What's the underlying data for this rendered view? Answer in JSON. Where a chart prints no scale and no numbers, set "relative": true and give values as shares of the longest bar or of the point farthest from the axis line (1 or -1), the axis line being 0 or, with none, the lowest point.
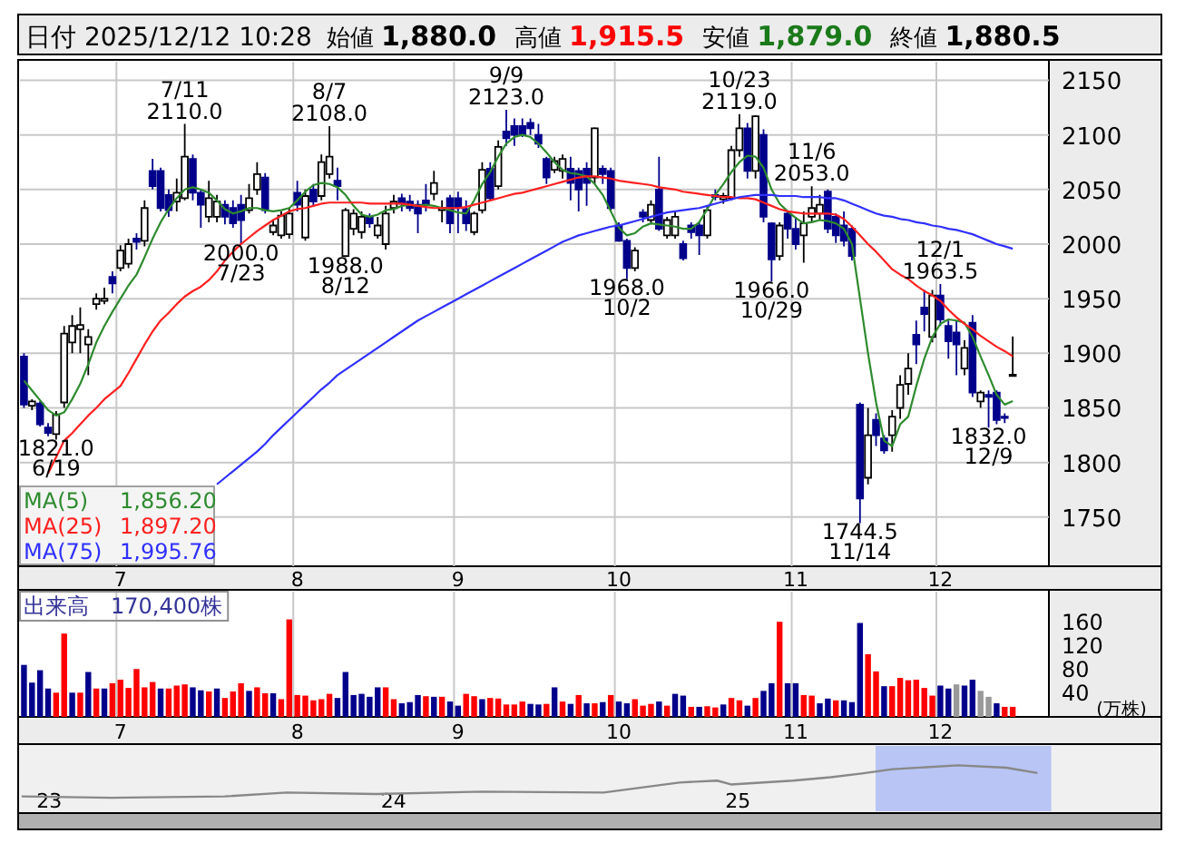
{
  "chart_data": [
    {
      "type": "candlestick",
      "title": "日付 2025/12/12 10:28",
      "annotations": [
        "始値",
        "1,880.0",
        "高値",
        "1,915.5",
        "安値",
        "1,879.0",
        "終値",
        "1,880.5",
        "1,856.20",
        "1,897.20",
        "1,995.76",
        {
          "text": "6/19",
          "y": 1821
        },
        {
          "text": "7/11",
          "y": 2110
        },
        {
          "text": "7/23",
          "y": 2000
        },
        {
          "text": "8/7",
          "y": 2108
        },
        {
          "text": "8/12",
          "y": 1988
        },
        {
          "text": "9/9",
          "y": 2123
        },
        {
          "text": "10/2",
          "y": 1968
        },
        {
          "text": "10/23",
          "y": 2119
        },
        {
          "text": "10/29",
          "y": 1966
        },
        {
          "text": "11/6",
          "y": 2053
        },
        {
          "text": "11/14",
          "y": 1744.5
        },
        {
          "text": "12/1",
          "y": 1963.5
        },
        {
          "text": "12/9",
          "y": 1832
        }
      ],
      "value_labels": [
        null,
        null,
        null,
        null,
        "1821.0",
        null,
        null,
        null,
        null,
        null,
        null,
        null,
        null,
        null,
        null,
        null,
        null,
        null,
        null,
        null,
        "2110.0",
        null,
        null,
        null,
        null,
        null,
        null,
        "2000.0",
        null,
        null,
        null,
        null,
        null,
        null,
        null,
        null,
        null,
        null,
        "2108.0",
        null,
        "1988.0",
        null,
        null,
        null,
        null,
        null,
        null,
        null,
        null,
        null,
        null,
        null,
        null,
        null,
        null,
        null,
        null,
        null,
        null,
        null,
        "2123.0",
        null,
        null,
        null,
        null,
        null,
        null,
        null,
        null,
        null,
        null,
        null,
        null,
        null,
        null,
        "1968.0",
        null,
        null,
        null,
        null,
        null,
        null,
        null,
        null,
        null,
        null,
        null,
        null,
        null,
        "2119.0",
        null,
        null,
        null,
        "1966.0",
        null,
        null,
        null,
        null,
        "2053.0",
        null,
        null,
        null,
        null,
        null,
        "1744.5",
        null,
        null,
        null,
        null,
        null,
        null,
        null,
        null,
        null,
        "1963.5",
        null,
        null,
        null,
        null,
        null,
        "1832.0",
        null,
        null,
        null,
        null,
        null,
        null,
        null
      ],
      "categories": [
        null,
        null,
        null,
        null,
        null,
        null,
        null,
        null,
        null,
        null,
        null,
        null,
        "7",
        null,
        null,
        null,
        null,
        null,
        null,
        null,
        null,
        null,
        null,
        null,
        null,
        null,
        null,
        null,
        null,
        null,
        null,
        null,
        null,
        null,
        "8",
        null,
        null,
        null,
        null,
        null,
        null,
        null,
        null,
        null,
        null,
        null,
        null,
        null,
        null,
        null,
        null,
        null,
        null,
        null,
        "9",
        null,
        null,
        null,
        null,
        null,
        null,
        null,
        null,
        null,
        null,
        null,
        null,
        null,
        null,
        null,
        null,
        null,
        null,
        null,
        "10",
        null,
        null,
        null,
        null,
        null,
        null,
        null,
        null,
        null,
        null,
        null,
        null,
        null,
        null,
        null,
        null,
        null,
        null,
        null,
        null,
        null,
        "11",
        null,
        null,
        null,
        null,
        null,
        null,
        null,
        null,
        null,
        null,
        null,
        null,
        null,
        null,
        null,
        null,
        null,
        "12",
        null,
        null,
        null,
        null,
        null,
        null,
        null,
        null,
        null,
        null,
        null,
        null,
        null
      ],
      "ohlc": [
        [
          1897,
          1900,
          1850,
          1853
        ],
        [
          1852,
          1858,
          1848,
          1856
        ],
        [
          1854,
          1856,
          1833,
          1835
        ],
        [
          1832,
          1836,
          1824,
          1827
        ],
        [
          1826,
          1847,
          1821,
          1844
        ],
        [
          1855,
          1925,
          1850,
          1918
        ],
        [
          1910,
          1935,
          1900,
          1925
        ],
        [
          1922,
          1942,
          1900,
          1926
        ],
        [
          1908,
          1922,
          1880,
          1915
        ],
        [
          1945,
          1955,
          1940,
          1950
        ],
        [
          1948,
          1960,
          1945,
          1950
        ],
        [
          1970,
          1975,
          1955,
          1964
        ],
        [
          1978,
          1999,
          1975,
          1994
        ],
        [
          1982,
          2005,
          1978,
          2000
        ],
        [
          2005,
          2010,
          1995,
          2002
        ],
        [
          2003,
          2040,
          1998,
          2033
        ],
        [
          2067,
          2078,
          2050,
          2053
        ],
        [
          2067,
          2070,
          2030,
          2033
        ],
        [
          2045,
          2050,
          2025,
          2031
        ],
        [
          2039,
          2060,
          2030,
          2047
        ],
        [
          2042,
          2110,
          2040,
          2080
        ],
        [
          2078,
          2082,
          2040,
          2047
        ],
        [
          2047,
          2050,
          2015,
          2036
        ],
        [
          2025,
          2058,
          2020,
          2042
        ],
        [
          2025,
          2045,
          2020,
          2039
        ],
        [
          2036,
          2040,
          2018,
          2025
        ],
        [
          2033,
          2040,
          2015,
          2019
        ],
        [
          2036,
          2045,
          2000,
          2022
        ],
        [
          2031,
          2055,
          2028,
          2042
        ],
        [
          2050,
          2075,
          2045,
          2064
        ],
        [
          2061,
          2065,
          2028,
          2031
        ],
        [
          2011,
          2022,
          2008,
          2017
        ],
        [
          2008,
          2030,
          2005,
          2026
        ],
        [
          2009,
          2033,
          2005,
          2028
        ],
        [
          2047,
          2058,
          2030,
          2036
        ],
        [
          2006,
          2050,
          2003,
          2044
        ],
        [
          2050,
          2055,
          2035,
          2039
        ],
        [
          2044,
          2082,
          2040,
          2075
        ],
        [
          2064,
          2108,
          2060,
          2080
        ],
        [
          2058,
          2070,
          2040,
          2053
        ],
        [
          1989,
          2033,
          1988,
          2031
        ],
        [
          2014,
          2032,
          2008,
          2028
        ],
        [
          2011,
          2030,
          2005,
          2025
        ],
        [
          2025,
          2028,
          2015,
          2019
        ],
        [
          2008,
          2025,
          2005,
          2017
        ],
        [
          2000,
          2035,
          1995,
          2028
        ],
        [
          2033,
          2045,
          2028,
          2039
        ],
        [
          2042,
          2046,
          2030,
          2037
        ],
        [
          2039,
          2045,
          2030,
          2033
        ],
        [
          2036,
          2040,
          2010,
          2028
        ],
        [
          2040,
          2055,
          2030,
          2036
        ],
        [
          2046,
          2067,
          2040,
          2056
        ],
        [
          2031,
          2040,
          2020,
          2033
        ],
        [
          2042,
          2045,
          2010,
          2019
        ],
        [
          2042,
          2048,
          2010,
          2033
        ],
        [
          2032,
          2040,
          2012,
          2019
        ],
        [
          2011,
          2030,
          2008,
          2028
        ],
        [
          2031,
          2075,
          2028,
          2068
        ],
        [
          2069,
          2075,
          2040,
          2042
        ],
        [
          2053,
          2095,
          2050,
          2089
        ],
        [
          2103,
          2123,
          2090,
          2097
        ],
        [
          2108,
          2115,
          2090,
          2100
        ],
        [
          2108,
          2115,
          2098,
          2100
        ],
        [
          2111,
          2115,
          2100,
          2106
        ],
        [
          2100,
          2110,
          2088,
          2092
        ],
        [
          2078,
          2080,
          2055,
          2061
        ],
        [
          2068,
          2080,
          2065,
          2076
        ],
        [
          2067,
          2082,
          2060,
          2078
        ],
        [
          2069,
          2080,
          2040,
          2056
        ],
        [
          2067,
          2070,
          2030,
          2050
        ],
        [
          2069,
          2075,
          2035,
          2056
        ],
        [
          2061,
          2107,
          2055,
          2106
        ],
        [
          2069,
          2072,
          2055,
          2064
        ],
        [
          2067,
          2070,
          2030,
          2033
        ],
        [
          2017,
          2020,
          2002,
          2003
        ],
        [
          2003,
          2005,
          1968,
          1978
        ],
        [
          1978,
          1997,
          1975,
          1994
        ],
        [
          2029,
          2032,
          2020,
          2025
        ],
        [
          2022,
          2040,
          2018,
          2036
        ],
        [
          2050,
          2080,
          2012,
          2014
        ],
        [
          2008,
          2025,
          2005,
          2022
        ],
        [
          2008,
          2030,
          2005,
          2025
        ],
        [
          2000,
          2003,
          1985,
          1987
        ],
        [
          2017,
          2020,
          2005,
          2011
        ],
        [
          2017,
          2020,
          1990,
          2008
        ],
        [
          2008,
          2035,
          2005,
          2031
        ],
        [
          2045,
          2050,
          2040,
          2043
        ],
        [
          2041,
          2047,
          2037,
          2044
        ],
        [
          2042,
          2090,
          2040,
          2086
        ],
        [
          2086,
          2119,
          2080,
          2106
        ],
        [
          2106,
          2111,
          2060,
          2067
        ],
        [
          2067,
          2118,
          2060,
          2117
        ],
        [
          2100,
          2105,
          2020,
          2025
        ],
        [
          2019,
          2020,
          1966,
          1986
        ],
        [
          1989,
          2020,
          1985,
          2017
        ],
        [
          2028,
          2030,
          2005,
          2014
        ],
        [
          2014,
          2025,
          1995,
          2000
        ],
        [
          2008,
          2030,
          1983,
          2019
        ],
        [
          2025,
          2053,
          2020,
          2033
        ],
        [
          2028,
          2045,
          2022,
          2036
        ],
        [
          2048,
          2050,
          2010,
          2014
        ],
        [
          2025,
          2028,
          2001,
          2008
        ],
        [
          2017,
          2030,
          1998,
          2003
        ],
        [
          2014,
          2017,
          1985,
          1989
        ],
        [
          1853,
          1855,
          1744.5,
          1767
        ],
        [
          1786,
          1850,
          1780,
          1825
        ],
        [
          1839,
          1845,
          1815,
          1825
        ],
        [
          1822,
          1825,
          1808,
          1811
        ],
        [
          1825,
          1848,
          1810,
          1842
        ],
        [
          1850,
          1880,
          1840,
          1871
        ],
        [
          1872,
          1900,
          1862,
          1886
        ],
        [
          1917,
          1930,
          1890,
          1908
        ],
        [
          1942,
          1958,
          1920,
          1936
        ],
        [
          1915,
          1958,
          1910,
          1953
        ],
        [
          1953,
          1963.5,
          1925,
          1931
        ],
        [
          1925,
          1930,
          1895,
          1911
        ],
        [
          1919,
          1930,
          1880,
          1908
        ],
        [
          1886,
          1912,
          1880,
          1905
        ],
        [
          1928,
          1935,
          1860,
          1864
        ],
        [
          1856,
          1866,
          1850,
          1864
        ],
        [
          1862,
          1866,
          1832,
          1860
        ],
        [
          1864,
          1866,
          1835,
          1839
        ],
        [
          1842,
          1845,
          1836,
          1841
        ],
        [
          1880,
          1915.5,
          1879,
          1880.5
        ],
        null,
        null,
        null,
        null
      ],
      "series": [
        {
          "type": "line",
          "name": "MA(5)",
          "color": "#2e8b2e",
          "values": [
            1875,
            1866,
            1857,
            1848,
            1843,
            1846,
            1858,
            1872,
            1890,
            1910,
            1925,
            1938,
            1950,
            1962,
            1972,
            1988,
            2005,
            2020,
            2032,
            2042,
            2050,
            2052,
            2050,
            2047,
            2040,
            2032,
            2028,
            2030,
            2033,
            2033,
            2031,
            2030,
            2031,
            2033,
            2040,
            2048,
            2054,
            2056,
            2055,
            2052,
            2045,
            2035,
            2027,
            2025,
            2027,
            2031,
            2032,
            2035,
            2036,
            2035,
            2036,
            2035,
            2033,
            2031,
            2029,
            2028,
            2040,
            2055,
            2066,
            2080,
            2092,
            2098,
            2100,
            2098,
            2092,
            2084,
            2075,
            2068,
            2065,
            2064,
            2062,
            2055,
            2045,
            2030,
            2015,
            2008,
            2010,
            2016,
            2019,
            2018,
            2017,
            2016,
            2014,
            2014,
            2020,
            2032,
            2045,
            2055,
            2066,
            2075,
            2081,
            2080,
            2070,
            2050,
            2037,
            2030,
            2024,
            2019,
            2020,
            2022,
            2021,
            2019,
            2014,
            2000,
            1950,
            1900,
            1855,
            1820,
            1815,
            1835,
            1842,
            1870,
            1895,
            1915,
            1927,
            1931,
            1930,
            1928,
            1915,
            1897,
            1880,
            1862,
            1853,
            1856.2,
            null,
            null,
            null,
            null
          ]
        },
        {
          "type": "line",
          "name": "MA(25)",
          "color": "#ff2020",
          "values": [
            null,
            null,
            null,
            1790,
            1805,
            1820,
            1827,
            1835,
            1843,
            1850,
            1858,
            1864,
            1870,
            1882,
            1895,
            1908,
            1920,
            1930,
            1937,
            1945,
            1952,
            1957,
            1961,
            1967,
            1975,
            1985,
            1993,
            2000,
            2006,
            2012,
            2017,
            2022,
            2026,
            2030,
            2032,
            2033,
            2035,
            2037,
            2038,
            2038,
            2038,
            2038,
            2038,
            2037,
            2037,
            2037,
            2037,
            2037,
            2036,
            2035,
            2034,
            2033,
            2033,
            2033,
            2033,
            2034,
            2036,
            2038,
            2040,
            2042,
            2044,
            2046,
            2047,
            2049,
            2051,
            2053,
            2055,
            2057,
            2059,
            2061,
            2062,
            2062,
            2061,
            2060,
            2058,
            2057,
            2056,
            2055,
            2054,
            2052,
            2051,
            2050,
            2048,
            2047,
            2046,
            2045,
            2044,
            2043,
            2043,
            2042,
            2042,
            2041,
            2038,
            2035,
            2032,
            2030,
            2029,
            2028,
            2028,
            2028,
            2028,
            2027,
            2023,
            2016,
            2008,
            2000,
            1993,
            1985,
            1977,
            1972,
            1968,
            1962,
            1957,
            1953,
            1948,
            1940,
            1933,
            1927,
            1922,
            1916,
            1911,
            1906,
            1902,
            1897.2,
            null,
            null,
            null,
            null
          ]
        },
        {
          "type": "line",
          "name": "MA(75)",
          "color": "#3030ff",
          "values": [
            null,
            null,
            null,
            null,
            null,
            null,
            null,
            null,
            null,
            null,
            null,
            null,
            null,
            null,
            null,
            null,
            null,
            null,
            null,
            null,
            null,
            null,
            null,
            null,
            1780,
            1786,
            1792,
            1798,
            1804,
            1810,
            1817,
            1825,
            1832,
            1839,
            1846,
            1853,
            1860,
            1867,
            1873,
            1880,
            1885,
            1890,
            1895,
            1900,
            1905,
            1910,
            1915,
            1920,
            1925,
            1930,
            1934,
            1938,
            1942,
            1946,
            1950,
            1954,
            1958,
            1962,
            1966,
            1970,
            1974,
            1978,
            1982,
            1986,
            1990,
            1994,
            1998,
            2002,
            2005,
            2008,
            2010,
            2012,
            2014,
            2016,
            2017,
            2019,
            2021,
            2023,
            2025,
            2027,
            2029,
            2030,
            2031,
            2032,
            2033,
            2035,
            2037,
            2039,
            2041,
            2043,
            2044,
            2045,
            2045,
            2045,
            2044,
            2044,
            2044,
            2043,
            2043,
            2043,
            2042,
            2042,
            2040,
            2037,
            2034,
            2031,
            2028,
            2026,
            2025,
            2023,
            2022,
            2020,
            2019,
            2017,
            2016,
            2014,
            2013,
            2011,
            2009,
            2006,
            2003,
            2000,
            1998,
            1995.76,
            null,
            null,
            null,
            null
          ]
        }
      ],
      "ylim": [
        1705,
        2167
      ],
      "yticks": [
        1750,
        1800,
        1850,
        1900,
        1950,
        2000,
        2050,
        2100,
        2150
      ],
      "grid": true,
      "legend": "bottom left"
    },
    {
      "type": "bar",
      "title": "出来高　170,400株",
      "ylabel": "(万株)",
      "categories": [
        null,
        null,
        null,
        null,
        null,
        null,
        null,
        null,
        null,
        null,
        null,
        null,
        "7",
        null,
        null,
        null,
        null,
        null,
        null,
        null,
        null,
        null,
        null,
        null,
        null,
        null,
        null,
        null,
        null,
        null,
        null,
        null,
        null,
        null,
        "8",
        null,
        null,
        null,
        null,
        null,
        null,
        null,
        null,
        null,
        null,
        null,
        null,
        null,
        null,
        null,
        null,
        null,
        null,
        null,
        "9",
        null,
        null,
        null,
        null,
        null,
        null,
        null,
        null,
        null,
        null,
        null,
        null,
        null,
        null,
        null,
        null,
        null,
        null,
        null,
        "10",
        null,
        null,
        null,
        null,
        null,
        null,
        null,
        null,
        null,
        null,
        null,
        null,
        null,
        null,
        null,
        null,
        null,
        null,
        null,
        null,
        null,
        "11",
        null,
        null,
        null,
        null,
        null,
        null,
        null,
        null,
        null,
        null,
        null,
        null,
        null,
        null,
        null,
        null,
        null,
        "12",
        null,
        null,
        null,
        null,
        null,
        null,
        null,
        null,
        null,
        null,
        null,
        null,
        null
      ],
      "values": [
        88,
        58,
        79,
        48,
        41,
        141,
        41,
        41,
        76,
        48,
        48,
        57,
        63,
        49,
        81,
        50,
        59,
        48,
        48,
        53,
        55,
        50,
        45,
        43,
        48,
        32,
        43,
        57,
        44,
        50,
        40,
        40,
        30,
        165,
        37,
        36,
        28,
        30,
        39,
        32,
        76,
        37,
        39,
        34,
        50,
        50,
        30,
        23,
        25,
        37,
        35,
        34,
        34,
        26,
        19,
        39,
        35,
        30,
        32,
        31,
        21,
        21,
        26,
        22,
        21,
        22,
        50,
        26,
        22,
        37,
        23,
        23,
        25,
        37,
        26,
        23,
        30,
        19,
        22,
        26,
        19,
        39,
        36,
        17,
        17,
        18,
        16,
        21,
        32,
        28,
        19,
        32,
        44,
        57,
        161,
        57,
        57,
        37,
        36,
        23,
        31,
        28,
        28,
        25,
        159,
        106,
        77,
        52,
        52,
        66,
        62,
        63,
        49,
        36,
        53,
        48,
        55,
        53,
        63,
        44,
        34,
        23,
        17,
        17,
        null,
        null,
        null,
        null
      ],
      "colors": [
        "#00008b",
        "#00008b",
        "#00008b",
        "#00008b",
        "#ff0000",
        "#ff0000",
        "#00008b",
        "#ff0000",
        "#00008b",
        "#ff0000",
        "#00008b",
        "#ff0000",
        "#ff0000",
        "#ff0000",
        "#ff0000",
        "#ff0000",
        "#ff0000",
        "#00008b",
        "#ff0000",
        "#ff0000",
        "#ff0000",
        "#00008b",
        "#00008b",
        "#ff0000",
        "#00008b",
        "#ff0000",
        "#ff0000",
        "#ff0000",
        "#00008b",
        "#ff0000",
        "#ff0000",
        "#00008b",
        "#ff0000",
        "#ff0000",
        "#ff0000",
        "#ff0000",
        "#ff0000",
        "#ff0000",
        "#ff0000",
        "#00008b",
        "#00008b",
        "#00008b",
        "#00008b",
        "#00008b",
        "#00008b",
        "#ff0000",
        "#ff0000",
        "#00008b",
        "#00008b",
        "#00008b",
        "#ff0000",
        "#00008b",
        "#ff0000",
        "#00008b",
        "#00008b",
        "#ff0000",
        "#ff0000",
        "#00008b",
        "#ff0000",
        "#ff0000",
        "#ff0000",
        "#ff0000",
        "#ff0000",
        "#00008b",
        "#00008b",
        "#ff0000",
        "#00008b",
        "#ff0000",
        "#00008b",
        "#ff0000",
        "#00008b",
        "#ff0000",
        "#00008b",
        "#ff0000",
        "#00008b",
        "#00008b",
        "#ff0000",
        "#ff0000",
        "#ff0000",
        "#00008b",
        "#ff0000",
        "#00008b",
        "#00008b",
        "#ff0000",
        "#00008b",
        "#ff0000",
        "#ff0000",
        "#00008b",
        "#ff0000",
        "#ff0000",
        "#00008b",
        "#ff0000",
        "#00008b",
        "#00008b",
        "#ff0000",
        "#00008b",
        "#00008b",
        "#ff0000",
        "#ff0000",
        "#00008b",
        "#00008b",
        "#ff0000",
        "#00008b",
        "#00008b",
        "#00008b",
        "#ff0000",
        "#ff0000",
        "#00008b",
        "#ff0000",
        "#ff0000",
        "#ff0000",
        "#ff0000",
        "#ff0000",
        "#ff0000",
        "#00008b",
        "#00008b",
        "#999999",
        "#00008b",
        "#00008b",
        "#999999",
        "#999999",
        "#00008b",
        "#ff0000",
        "#ff0000",
        null,
        null,
        null,
        null
      ],
      "ylim": [
        0,
        212
      ],
      "yticks": [
        40,
        80,
        120,
        160
      ],
      "grid": true
    },
    {
      "type": "line",
      "relative": true,
      "tick_labels": "x",
      "color": "#888888",
      "x": [
        2022.92,
        2023.18,
        2023.51,
        2023.69,
        2023.95,
        2024.26,
        2024.61,
        2024.83,
        2024.94,
        2024.98,
        2025.16,
        2025.27,
        2025.36,
        2025.45,
        2025.64,
        2025.78,
        2025.87
      ],
      "values": [
        0.35,
        0.32,
        0.35,
        0.43,
        0.4,
        0.45,
        0.43,
        0.64,
        0.68,
        0.6,
        0.68,
        0.75,
        0.83,
        0.92,
        1,
        0.95,
        0.84
      ],
      "xlim": [
        2022.91,
        2026.23
      ],
      "xticks": [
        {
          "value": 2023,
          "label": "23"
        },
        {
          "value": 2024,
          "label": "24"
        },
        {
          "value": 2025,
          "label": "25"
        }
      ],
      "bands": [
        {
          "axis": "x",
          "from": 2025.4,
          "to": 2025.91,
          "color": "#b8c5f5"
        }
      ]
    }
  ]
}
